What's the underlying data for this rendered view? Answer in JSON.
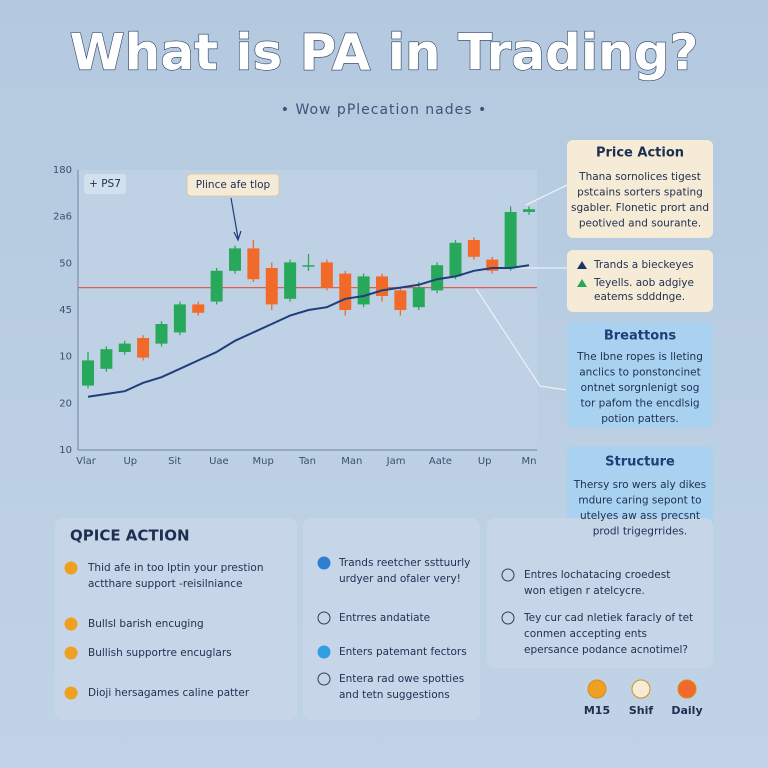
{
  "title": "What is PA in Trading?",
  "subtitle": "• Wow pPlecation nades •",
  "chart_data": {
    "type": "candlestick",
    "tag": "+ PS7",
    "annotation": "Plince afe tlop",
    "y_axis_labels": [
      "180",
      "2a6",
      "50",
      "45",
      "10",
      "20",
      "10"
    ],
    "x_axis_labels": [
      "Vlar",
      "Up",
      "Sit",
      "Uae",
      "Mup",
      "Tan",
      "Man",
      "Jam",
      "Aate",
      "Up",
      "Mn"
    ],
    "ylim": [
      0,
      100
    ],
    "up_color": "#27a85a",
    "down_color": "#f26a2a",
    "candles": [
      {
        "open": 23,
        "high": 35,
        "low": 22,
        "close": 32
      },
      {
        "open": 29,
        "high": 37,
        "low": 28,
        "close": 36
      },
      {
        "open": 35,
        "high": 39,
        "low": 34,
        "close": 38
      },
      {
        "open": 40,
        "high": 41,
        "low": 32,
        "close": 33
      },
      {
        "open": 38,
        "high": 46,
        "low": 37,
        "close": 45
      },
      {
        "open": 42,
        "high": 53,
        "low": 41,
        "close": 52
      },
      {
        "open": 52,
        "high": 53,
        "low": 48,
        "close": 49
      },
      {
        "open": 53,
        "high": 65,
        "low": 52,
        "close": 64
      },
      {
        "open": 64,
        "high": 73,
        "low": 63,
        "close": 72
      },
      {
        "open": 72,
        "high": 75,
        "low": 60,
        "close": 61
      },
      {
        "open": 65,
        "high": 67,
        "low": 50,
        "close": 52
      },
      {
        "open": 54,
        "high": 68,
        "low": 53,
        "close": 67
      },
      {
        "open": 66,
        "high": 70,
        "low": 64,
        "close": 66
      },
      {
        "open": 67,
        "high": 68,
        "low": 57,
        "close": 58
      },
      {
        "open": 63,
        "high": 64,
        "low": 48,
        "close": 50
      },
      {
        "open": 52,
        "high": 63,
        "low": 51,
        "close": 62
      },
      {
        "open": 62,
        "high": 63,
        "low": 53,
        "close": 55
      },
      {
        "open": 57,
        "high": 58,
        "low": 48,
        "close": 50
      },
      {
        "open": 51,
        "high": 60,
        "low": 50,
        "close": 58
      },
      {
        "open": 57,
        "high": 67,
        "low": 56,
        "close": 66
      },
      {
        "open": 62,
        "high": 75,
        "low": 61,
        "close": 74
      },
      {
        "open": 75,
        "high": 76,
        "low": 68,
        "close": 69
      },
      {
        "open": 68,
        "high": 69,
        "low": 63,
        "close": 64
      },
      {
        "open": 65,
        "high": 87,
        "low": 64,
        "close": 85
      },
      {
        "open": 85,
        "high": 87,
        "low": 84,
        "close": 86
      }
    ],
    "trend": {
      "color": "#1f3f7a",
      "values": [
        19,
        20,
        21,
        24,
        26,
        29,
        32,
        35,
        39,
        42,
        45,
        48,
        50,
        51,
        54,
        55,
        57,
        58,
        59,
        61,
        62,
        64,
        65,
        65,
        66
      ]
    },
    "level": {
      "color": "#e06050",
      "value": 58
    }
  },
  "cards": [
    {
      "title": "Price Action",
      "lines": [
        "Thana sornolices tigest",
        "pstcains sorters spating",
        "sgabler. Flonetic prort and",
        "peotived and sourante."
      ]
    },
    {
      "items": [
        [
          "Trands a bieckeyes"
        ],
        [
          "Teyells. aob adgiye",
          "eatems sdddnge."
        ]
      ]
    },
    {
      "title": "Breattons",
      "lines": [
        "The lbne ropes is lleting",
        "anclics to ponstoncinet",
        "ontnet sorgnlenigt sog",
        "tor pafom the encdlsig",
        "potion patters."
      ]
    },
    {
      "title": "Structure",
      "lines": [
        "Thersy sro wers aly dikes",
        "mdure caring sepont to",
        "utelyes aw ass precsnt",
        "prodl trigegrrides."
      ]
    }
  ],
  "panels": [
    {
      "title": "QPICE ACTION",
      "items": [
        [
          "Thid afe in too lptin your prestion",
          "actthare support -reisilniance"
        ],
        [
          "Bullsl barish encuging"
        ],
        [
          "Bullish supportre encuglars"
        ],
        [
          "Dioji hersagames caline patter"
        ]
      ]
    },
    {
      "items": [
        [
          "Trands reetcher ssttuurly",
          "urdyer and ofaler very!"
        ],
        [
          "Entrres andatiate"
        ],
        [
          "Enters patemant fectors"
        ],
        [
          "Entera rad owe spotties",
          "and tetn suggestions"
        ]
      ]
    },
    {
      "items": [
        [
          "Entres lochatacing croedest",
          "won etigen r atelcycre."
        ],
        [
          "Tey cur cad nletiek faracly of tet",
          "conmen accepting ents",
          "epersance podance acnotimel?"
        ]
      ]
    }
  ],
  "timeframes": [
    "M15",
    "Shif",
    "Daily"
  ]
}
